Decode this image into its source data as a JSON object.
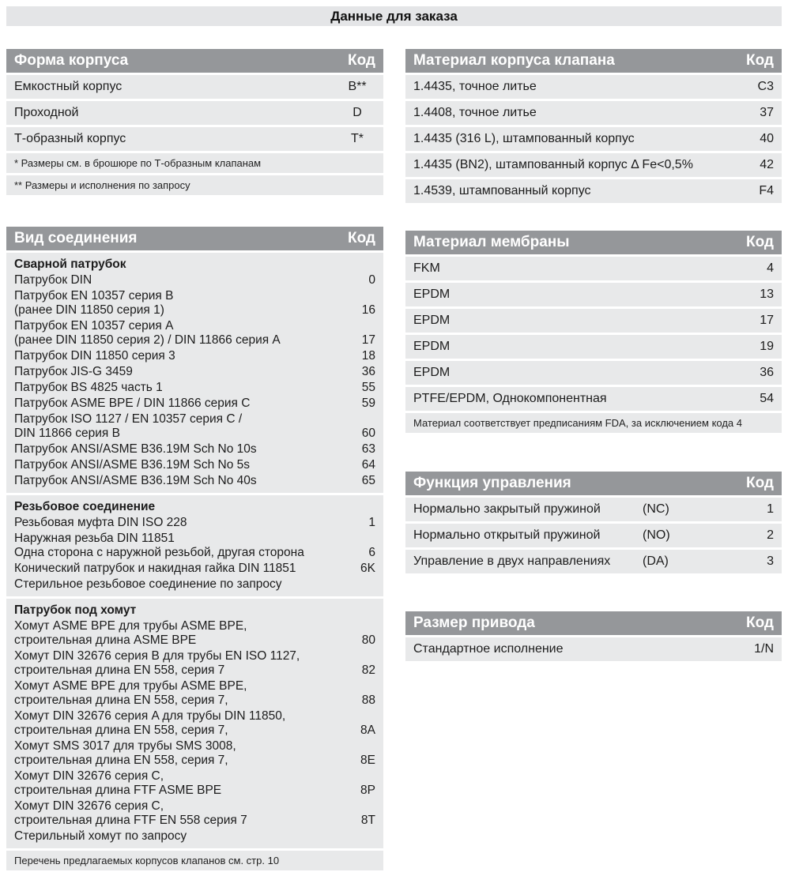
{
  "page_title": "Данные для заказа",
  "colors": {
    "header_bg": "#95979a",
    "row_bg": "#e8e9ea",
    "title_bg": "#e4e5e7",
    "header_text": "#ffffff"
  },
  "tables": {
    "body_shape": {
      "title": "Форма корпуса",
      "code_label": "Код",
      "center_codes": true,
      "rows": [
        {
          "label": "Емкостный корпус",
          "code": "B**"
        },
        {
          "label": "Проходной",
          "code": "D"
        },
        {
          "label": "Т-образный корпус",
          "code": "T*"
        }
      ],
      "footnotes": [
        "*  Размеры см. в брошюре по Т-образным клапанам",
        "** Размеры и исполнения по запросу"
      ]
    },
    "body_material": {
      "title": "Материал корпуса клапана",
      "code_label": "Код",
      "rows": [
        {
          "label": "1.4435, точное литье",
          "code": "C3"
        },
        {
          "label": "1.4408, точное литье",
          "code": "37"
        },
        {
          "label": "1.4435 (316 L), штампованный корпус",
          "code": "40"
        },
        {
          "label": "1.4435 (BN2), штампованный корпус Δ Fe<0,5%",
          "code": "42"
        },
        {
          "label": "1.4539, штампованный корпус",
          "code": "F4"
        }
      ]
    },
    "connection": {
      "title": "Вид соединения",
      "code_label": "Код",
      "sections": [
        {
          "heading": "Сварной патрубок",
          "items": [
            {
              "lines": [
                "Патрубок DIN"
              ],
              "code": "0"
            },
            {
              "lines": [
                "Патрубок EN 10357 серия B",
                "(ранее DIN 11850 серия 1)"
              ],
              "code": "16"
            },
            {
              "lines": [
                "Патрубок EN 10357 серия A",
                "(ранее DIN 11850 серия 2) / DIN 11866 серия A"
              ],
              "code": "17"
            },
            {
              "lines": [
                "Патрубок DIN 11850 серия 3"
              ],
              "code": "18"
            },
            {
              "lines": [
                "Патрубок JIS-G 3459"
              ],
              "code": "36"
            },
            {
              "lines": [
                "Патрубок BS 4825 часть 1"
              ],
              "code": "55"
            },
            {
              "lines": [
                "Патрубок ASME BPE / DIN 11866 серия C"
              ],
              "code": "59"
            },
            {
              "lines": [
                "Патрубок ISO 1127 / EN 10357 серия C /",
                "DIN 11866 серия B"
              ],
              "code": "60"
            },
            {
              "lines": [
                "Патрубок ANSI/ASME B36.19M Sch No 10s"
              ],
              "code": "63"
            },
            {
              "lines": [
                "Патрубок ANSI/ASME B36.19M Sch No 5s"
              ],
              "code": "64"
            },
            {
              "lines": [
                "Патрубок ANSI/ASME B36.19M Sch No 40s"
              ],
              "code": "65"
            }
          ]
        },
        {
          "heading": "Резьбовое соединение",
          "items": [
            {
              "lines": [
                "Резьбовая муфта DIN ISO 228"
              ],
              "code": "1"
            },
            {
              "lines": [
                "Наружная резьба DIN 11851",
                "Одна сторона с наружной резьбой, другая сторона"
              ],
              "code": "6"
            },
            {
              "lines": [
                "Конический патрубок и накидная гайка DIN 11851"
              ],
              "code": "6K"
            },
            {
              "lines": [
                "Стерильное резьбовое соединение по запросу"
              ],
              "code": ""
            }
          ]
        },
        {
          "heading": "Патрубок под хомут",
          "items": [
            {
              "lines": [
                "Хомут ASME BPE для трубы ASME BPE,",
                "строительная длина ASME BPE"
              ],
              "code": "80"
            },
            {
              "lines": [
                "Хомут DIN 32676 серия B для трубы EN ISO 1127,",
                "строительная длина EN 558, серия 7"
              ],
              "code": "82"
            },
            {
              "lines": [
                "Хомут ASME BPE для трубы ASME BPE,",
                "строительная длина EN 558, серия 7,"
              ],
              "code": "88"
            },
            {
              "lines": [
                "Хомут DIN 32676 серия A для трубы DIN 11850,",
                "строительная длина EN 558, серия 7,"
              ],
              "code": "8A"
            },
            {
              "lines": [
                "Хомут SMS 3017 для трубы SMS 3008,",
                "строительная длина EN 558, серия 7,"
              ],
              "code": "8E"
            },
            {
              "lines": [
                "Хомут DIN 32676 серия C,",
                "строительная длина FTF ASME BPE"
              ],
              "code": "8P"
            },
            {
              "lines": [
                "Хомут DIN 32676 серия C,",
                "строительная длина FTF EN 558 серия 7"
              ],
              "code": "8T"
            },
            {
              "lines": [
                "Стерильный хомут по запросу"
              ],
              "code": ""
            }
          ]
        }
      ],
      "footer": "Перечень предлагаемых корпусов клапанов см. стр. 10"
    },
    "diaphragm_material": {
      "title": "Материал мембраны",
      "code_label": "Код",
      "rows": [
        {
          "label": "FKM",
          "code": "4"
        },
        {
          "label": "EPDM",
          "code": "13"
        },
        {
          "label": "EPDM",
          "code": "17"
        },
        {
          "label": "EPDM",
          "code": "19"
        },
        {
          "label": "EPDM",
          "code": "36"
        },
        {
          "label": "PTFE/EPDM, Однокомпонентная",
          "code": "54"
        }
      ],
      "footer": "Материал соответствует предписаниям FDA, за исключением кода 4"
    },
    "control_function": {
      "title": "Функция управления",
      "code_label": "Код",
      "rows": [
        {
          "label": "Нормально закрытый пружиной",
          "abbr": "(NC)",
          "code": "1"
        },
        {
          "label": "Нормально открытый пружиной",
          "abbr": "(NO)",
          "code": "2"
        },
        {
          "label": "Управление в двух направлениях",
          "abbr": "(DA)",
          "code": "3"
        }
      ]
    },
    "actuator_size": {
      "title": "Размер привода",
      "code_label": "Код",
      "rows": [
        {
          "label": "Стандартное исполнение",
          "code": "1/N"
        }
      ]
    }
  }
}
